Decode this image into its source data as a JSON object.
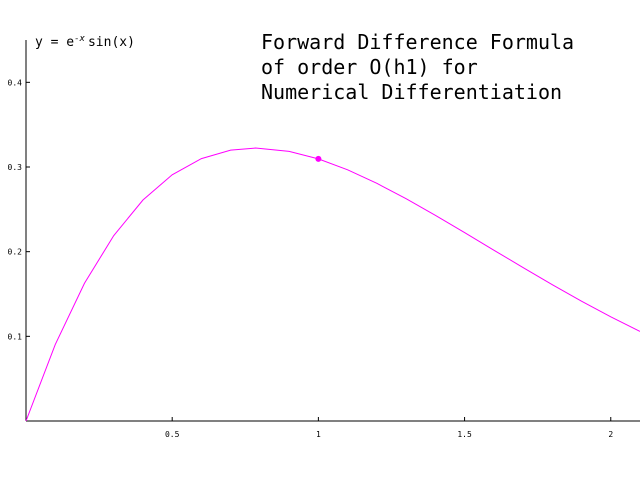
{
  "chart_data": {
    "type": "line",
    "title_lines": [
      "Forward Difference Formula",
      "of order O(h1) for",
      "Numerical Differentiation"
    ],
    "function_label": {
      "lhs": "y = e",
      "exponent": "-x",
      "rhs": "sin(x)"
    },
    "xlim": [
      0,
      2.1
    ],
    "ylim": [
      0,
      0.45
    ],
    "x_ticks": [
      {
        "value": 0.5,
        "label": "0.5"
      },
      {
        "value": 1,
        "label": "1"
      },
      {
        "value": 1.5,
        "label": "1.5"
      },
      {
        "value": 2,
        "label": "2"
      }
    ],
    "y_ticks": [
      {
        "value": 0.1,
        "label": "0.1"
      },
      {
        "value": 0.2,
        "label": "0.2"
      },
      {
        "value": 0.3,
        "label": "0.3"
      },
      {
        "value": 0.4,
        "label": "0.4"
      }
    ],
    "grid": false,
    "series": [
      {
        "color": "#ff00ff",
        "x": [
          0,
          0.1,
          0.2,
          0.3,
          0.4,
          0.5,
          0.6,
          0.7,
          0.785,
          0.9,
          1.0,
          1.1,
          1.2,
          1.3,
          1.4,
          1.5,
          1.6,
          1.7,
          1.8,
          1.9,
          2.0,
          2.1
        ],
        "y": [
          0,
          0.0903,
          0.1627,
          0.2189,
          0.261,
          0.2908,
          0.3099,
          0.3199,
          0.3224,
          0.3185,
          0.3096,
          0.2967,
          0.2807,
          0.2626,
          0.243,
          0.2226,
          0.2018,
          0.1812,
          0.161,
          0.1415,
          0.1231,
          0.1058
        ]
      }
    ],
    "highlight_point": {
      "x": 1.0,
      "y": 0.3096,
      "color": "#ff00ff"
    }
  }
}
